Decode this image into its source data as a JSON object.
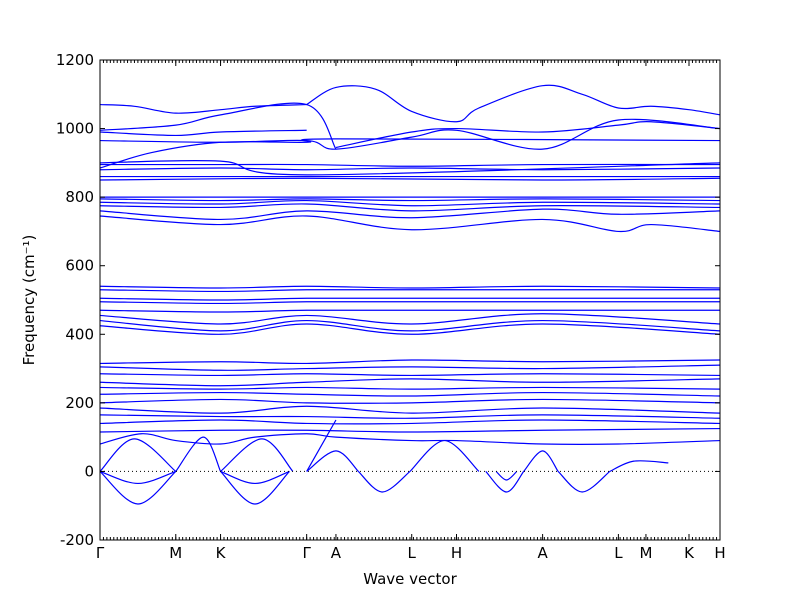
{
  "chart_data": {
    "type": "line",
    "title": "",
    "xlabel": "Wave vector",
    "ylabel": "Frequency (cm⁻¹)",
    "ylim": [
      -200,
      1200
    ],
    "yticks": [
      -200,
      0,
      200,
      400,
      600,
      800,
      1000,
      1200
    ],
    "xlim": [
      0,
      18
    ],
    "xticks": [
      {
        "x": 0,
        "label": "Γ"
      },
      {
        "x": 2.2,
        "label": "M"
      },
      {
        "x": 3.5,
        "label": "K"
      },
      {
        "x": 6.0,
        "label": "Γ"
      },
      {
        "x": 6.85,
        "label": "A"
      },
      {
        "x": 9.05,
        "label": "L"
      },
      {
        "x": 10.35,
        "label": "H"
      },
      {
        "x": 12.85,
        "label": "A"
      },
      {
        "x": 15.05,
        "label": "L"
      },
      {
        "x": 15.85,
        "label": "M"
      },
      {
        "x": 17.1,
        "label": "K"
      },
      {
        "x": 18.0,
        "label": "H"
      }
    ],
    "minor_ticks_every": 0.1,
    "zero_line": "dotted",
    "grid": false,
    "line_color": "#0000ff",
    "series": [
      {
        "x": [
          0,
          1,
          2.2,
          3.5,
          4.5,
          6.0
        ],
        "values": [
          1070,
          1065,
          1045,
          1055,
          1065,
          1070
        ]
      },
      {
        "x": [
          6.0,
          6.85,
          8,
          9.05,
          10.35,
          11,
          12.85,
          14,
          15.05,
          16,
          17.1,
          18
        ],
        "values": [
          1070,
          1120,
          1115,
          1050,
          1020,
          1060,
          1125,
          1100,
          1060,
          1065,
          1055,
          1040
        ]
      },
      {
        "x": [
          0,
          2.2,
          3.5,
          6.0,
          6.85
        ],
        "values": [
          995,
          1010,
          1040,
          1070,
          940
        ]
      },
      {
        "x": [
          0,
          2.2,
          3.5,
          6.0
        ],
        "values": [
          990,
          980,
          990,
          995
        ]
      },
      {
        "x": [
          6.85,
          9.05,
          10.35,
          12.85,
          15.05,
          16,
          18
        ],
        "values": [
          945,
          990,
          1000,
          990,
          1010,
          1020,
          1000
        ]
      },
      {
        "x": [
          0,
          3.5,
          6.0,
          6.85,
          9.05,
          10.35,
          12.85,
          15.05,
          18
        ],
        "values": [
          965,
          960,
          965,
          940,
          975,
          995,
          940,
          1025,
          1000
        ]
      },
      {
        "x": [
          0,
          1.5,
          3.5,
          6.0,
          6.85,
          18
        ],
        "values": [
          885,
          930,
          960,
          960,
          970,
          965
        ]
      },
      {
        "x": [
          0,
          3.5,
          6.0,
          18
        ],
        "values": [
          900,
          905,
          865,
          900
        ]
      },
      {
        "x": [
          0,
          3.5,
          6.0,
          9.05,
          12.85,
          18
        ],
        "values": [
          895,
          895,
          895,
          890,
          895,
          895
        ]
      },
      {
        "x": [
          0,
          3.5,
          6.0,
          9.05,
          12.85,
          18
        ],
        "values": [
          880,
          885,
          880,
          885,
          880,
          885
        ]
      },
      {
        "x": [
          0,
          6.0,
          12.85,
          18
        ],
        "values": [
          860,
          860,
          860,
          860
        ]
      },
      {
        "x": [
          0,
          6.0,
          12.85,
          18
        ],
        "values": [
          850,
          855,
          850,
          855
        ]
      },
      {
        "x": [
          0,
          3.5,
          6.0,
          9.05,
          12.85,
          18
        ],
        "values": [
          800,
          800,
          800,
          800,
          800,
          800
        ]
      },
      {
        "x": [
          0,
          3.5,
          6.0,
          9.05,
          12.85,
          18
        ],
        "values": [
          795,
          790,
          795,
          790,
          795,
          790
        ]
      },
      {
        "x": [
          0,
          3.5,
          6.0,
          9.05,
          12.85,
          18
        ],
        "values": [
          785,
          780,
          790,
          775,
          785,
          780
        ]
      },
      {
        "x": [
          0,
          3.5,
          6.0,
          9.05,
          12.85,
          18
        ],
        "values": [
          775,
          770,
          780,
          760,
          775,
          770
        ]
      },
      {
        "x": [
          0,
          3.5,
          6.0,
          9.05,
          12.85,
          15.05,
          18
        ],
        "values": [
          760,
          735,
          760,
          740,
          765,
          750,
          760
        ]
      },
      {
        "x": [
          0,
          3.5,
          6.0,
          9.05,
          12.85,
          15.05,
          16,
          18
        ],
        "values": [
          745,
          720,
          745,
          705,
          735,
          700,
          720,
          700
        ]
      },
      {
        "x": [
          0,
          3.5,
          6.0,
          9.05,
          12.85,
          18
        ],
        "values": [
          540,
          535,
          540,
          535,
          540,
          535
        ]
      },
      {
        "x": [
          0,
          3.5,
          6.0,
          9.05,
          12.85,
          18
        ],
        "values": [
          530,
          525,
          530,
          530,
          530,
          530
        ]
      },
      {
        "x": [
          0,
          3.5,
          6.0,
          9.05,
          12.85,
          18
        ],
        "values": [
          505,
          500,
          505,
          505,
          505,
          505
        ]
      },
      {
        "x": [
          0,
          3.5,
          6.0,
          9.05,
          12.85,
          18
        ],
        "values": [
          495,
          490,
          495,
          495,
          495,
          495
        ]
      },
      {
        "x": [
          0,
          3.5,
          6.0,
          9.05,
          12.85,
          18
        ],
        "values": [
          470,
          465,
          470,
          470,
          470,
          470
        ]
      },
      {
        "x": [
          0,
          3.5,
          6.0,
          9.05,
          12.85,
          18
        ],
        "values": [
          455,
          430,
          455,
          430,
          460,
          430
        ]
      },
      {
        "x": [
          0,
          3.5,
          6.0,
          9.05,
          12.85,
          18
        ],
        "values": [
          440,
          410,
          440,
          410,
          440,
          410
        ]
      },
      {
        "x": [
          0,
          3.5,
          6.0,
          9.05,
          12.85,
          18
        ],
        "values": [
          425,
          400,
          430,
          400,
          430,
          400
        ]
      },
      {
        "x": [
          0,
          3.5,
          6.0,
          9.05,
          12.85,
          18
        ],
        "values": [
          315,
          320,
          315,
          325,
          320,
          325
        ]
      },
      {
        "x": [
          0,
          3.5,
          6.0,
          9.05,
          12.85,
          18
        ],
        "values": [
          305,
          295,
          300,
          305,
          300,
          310
        ]
      },
      {
        "x": [
          0,
          3.5,
          6.0,
          9.05,
          12.85,
          18
        ],
        "values": [
          285,
          280,
          285,
          280,
          285,
          280
        ]
      },
      {
        "x": [
          0,
          3.5,
          6.0,
          9.05,
          12.85,
          18
        ],
        "values": [
          260,
          250,
          260,
          270,
          260,
          270
        ]
      },
      {
        "x": [
          0,
          3.5,
          6.0,
          9.05,
          12.85,
          18
        ],
        "values": [
          245,
          240,
          245,
          240,
          245,
          240
        ]
      },
      {
        "x": [
          0,
          3.5,
          6.0,
          9.05,
          12.85,
          18
        ],
        "values": [
          225,
          230,
          225,
          220,
          230,
          220
        ]
      },
      {
        "x": [
          0,
          3.5,
          6.0,
          9.05,
          12.85,
          18
        ],
        "values": [
          200,
          210,
          200,
          200,
          210,
          200
        ]
      },
      {
        "x": [
          0,
          3.5,
          6.0,
          9.05,
          12.85,
          18
        ],
        "values": [
          185,
          170,
          190,
          170,
          185,
          170
        ]
      },
      {
        "x": [
          0,
          3.5,
          6.0,
          9.05,
          12.85,
          18
        ],
        "values": [
          165,
          160,
          160,
          155,
          165,
          155
        ]
      },
      {
        "x": [
          0,
          3.5,
          6.0,
          9.05,
          12.85,
          18
        ],
        "values": [
          140,
          150,
          140,
          140,
          150,
          140
        ]
      },
      {
        "x": [
          0,
          3.5,
          6.0,
          9.05,
          12.85,
          18
        ],
        "values": [
          115,
          120,
          120,
          115,
          120,
          125
        ]
      },
      {
        "x": [
          0,
          1.2,
          2.2,
          3.5,
          4.5,
          6.0,
          6.85,
          9.05,
          10.35,
          12.85,
          15.05,
          18
        ],
        "values": [
          80,
          110,
          90,
          80,
          100,
          110,
          100,
          90,
          90,
          80,
          80,
          90
        ]
      },
      {
        "x": [
          0,
          1.1,
          2.2
        ],
        "values": [
          0,
          -95,
          0
        ]
      },
      {
        "x": [
          0,
          1.1,
          2.2
        ],
        "values": [
          0,
          -35,
          0
        ]
      },
      {
        "x": [
          3.5,
          4.5,
          5.5
        ],
        "values": [
          0,
          -95,
          0
        ]
      },
      {
        "x": [
          3.5,
          4.5,
          5.5
        ],
        "values": [
          0,
          -35,
          0
        ]
      },
      {
        "x": [
          7.5,
          8.2,
          9.0
        ],
        "values": [
          0,
          -60,
          0
        ]
      },
      {
        "x": [
          11.2,
          11.8,
          12.3
        ],
        "values": [
          0,
          -60,
          0
        ]
      },
      {
        "x": [
          11.5,
          11.8,
          12.1
        ],
        "values": [
          0,
          -25,
          0
        ]
      },
      {
        "x": [
          13.3,
          14.0,
          14.8
        ],
        "values": [
          0,
          -60,
          0
        ]
      },
      {
        "x": [
          0,
          1.0,
          2.2
        ],
        "values": [
          0,
          95,
          0
        ]
      },
      {
        "x": [
          2.2,
          3.0,
          3.5
        ],
        "values": [
          0,
          100,
          0
        ]
      },
      {
        "x": [
          3.5,
          4.7,
          5.6
        ],
        "values": [
          0,
          95,
          0
        ]
      },
      {
        "x": [
          6.0,
          6.85,
          7.5
        ],
        "values": [
          0,
          60,
          0
        ]
      },
      {
        "x": [
          9.0,
          10.0,
          11.0
        ],
        "values": [
          0,
          90,
          0
        ]
      },
      {
        "x": [
          12.3,
          12.85,
          13.3
        ],
        "values": [
          0,
          60,
          0
        ]
      },
      {
        "x": [
          14.8,
          15.5,
          16.5
        ],
        "values": [
          0,
          30,
          25
        ]
      },
      {
        "x": [
          6.0,
          6.85
        ],
        "values": [
          0,
          150
        ]
      }
    ]
  }
}
